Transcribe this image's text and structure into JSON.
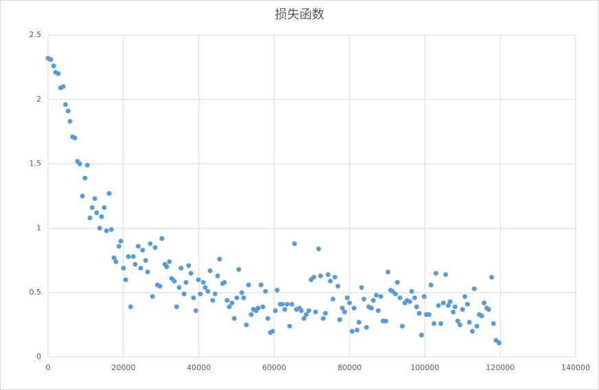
{
  "chart_data": {
    "type": "scatter",
    "title": "损失函数",
    "x": [
      0,
      700,
      1500,
      2000,
      2700,
      3300,
      4000,
      4600,
      5300,
      5800,
      6500,
      7100,
      7800,
      8400,
      9100,
      9800,
      10400,
      11100,
      11700,
      12400,
      12900,
      13700,
      14200,
      14900,
      15500,
      16200,
      16800,
      17500,
      18000,
      18800,
      19300,
      20000,
      20600,
      21300,
      21900,
      22600,
      23100,
      23900,
      24600,
      25100,
      25900,
      26400,
      27100,
      27700,
      28400,
      29000,
      29700,
      30200,
      31000,
      31500,
      32200,
      32800,
      33500,
      34100,
      34800,
      35300,
      36100,
      36600,
      37300,
      37900,
      38600,
      39200,
      39900,
      40400,
      41200,
      41700,
      42400,
      43000,
      43700,
      44300,
      45000,
      45500,
      46300,
      46800,
      47500,
      48100,
      48800,
      49400,
      50100,
      50600,
      51400,
      51900,
      52600,
      53200,
      53900,
      54500,
      55200,
      55700,
      56500,
      57000,
      57700,
      58300,
      59000,
      59600,
      60300,
      60800,
      61600,
      62100,
      62800,
      63400,
      64100,
      64700,
      65400,
      65900,
      66700,
      67200,
      67900,
      68500,
      69200,
      69800,
      70500,
      71000,
      71800,
      72300,
      73000,
      73600,
      74300,
      74900,
      75600,
      76100,
      76900,
      77400,
      78100,
      78700,
      79400,
      80000,
      80700,
      81200,
      82000,
      82500,
      83200,
      83800,
      84500,
      85100,
      85800,
      86300,
      87100,
      87600,
      88300,
      88900,
      89600,
      90200,
      90900,
      91400,
      92200,
      92700,
      93400,
      94000,
      94700,
      95300,
      96000,
      96500,
      97300,
      97800,
      98500,
      99100,
      99800,
      100400,
      101100,
      101600,
      102400,
      102900,
      103600,
      104200,
      104900,
      105500,
      106200,
      106700,
      107500,
      108000,
      108700,
      109300,
      110000,
      110600,
      111300,
      111800,
      112600,
      113100,
      113800,
      114400,
      115100,
      115700,
      116400,
      116900,
      117700,
      118200,
      118900,
      119700
    ],
    "values": [
      2.32,
      2.31,
      2.26,
      2.21,
      2.2,
      2.09,
      2.1,
      1.96,
      1.91,
      1.83,
      1.71,
      1.7,
      1.52,
      1.5,
      1.25,
      1.39,
      1.49,
      1.08,
      1.16,
      1.23,
      1.12,
      1.0,
      1.09,
      1.16,
      0.98,
      1.27,
      0.99,
      0.77,
      0.74,
      0.86,
      0.9,
      0.69,
      0.6,
      0.78,
      0.39,
      0.78,
      0.72,
      0.86,
      0.69,
      0.83,
      0.75,
      0.66,
      0.88,
      0.47,
      0.85,
      0.56,
      0.55,
      0.92,
      0.72,
      0.7,
      0.74,
      0.61,
      0.59,
      0.39,
      0.54,
      0.69,
      0.49,
      0.58,
      0.71,
      0.65,
      0.46,
      0.36,
      0.6,
      0.49,
      0.58,
      0.54,
      0.51,
      0.67,
      0.44,
      0.49,
      0.63,
      0.76,
      0.57,
      0.58,
      0.44,
      0.39,
      0.42,
      0.3,
      0.46,
      0.68,
      0.5,
      0.46,
      0.25,
      0.56,
      0.33,
      0.37,
      0.36,
      0.38,
      0.56,
      0.39,
      0.51,
      0.3,
      0.19,
      0.2,
      0.36,
      0.52,
      0.41,
      0.41,
      0.37,
      0.41,
      0.24,
      0.41,
      0.88,
      0.37,
      0.38,
      0.36,
      0.3,
      0.33,
      0.36,
      0.6,
      0.62,
      0.35,
      0.84,
      0.63,
      0.3,
      0.34,
      0.64,
      0.59,
      0.45,
      0.62,
      0.55,
      0.29,
      0.38,
      0.35,
      0.46,
      0.42,
      0.2,
      0.38,
      0.21,
      0.27,
      0.54,
      0.45,
      0.23,
      0.39,
      0.38,
      0.44,
      0.48,
      0.36,
      0.47,
      0.28,
      0.28,
      0.66,
      0.52,
      0.51,
      0.49,
      0.58,
      0.46,
      0.24,
      0.42,
      0.44,
      0.43,
      0.51,
      0.46,
      0.39,
      0.34,
      0.17,
      0.47,
      0.33,
      0.33,
      0.56,
      0.26,
      0.65,
      0.4,
      0.26,
      0.42,
      0.64,
      0.4,
      0.43,
      0.35,
      0.39,
      0.28,
      0.25,
      0.37,
      0.47,
      0.41,
      0.27,
      0.2,
      0.53,
      0.24,
      0.33,
      0.32,
      0.42,
      0.38,
      0.37,
      0.62,
      0.26,
      0.13,
      0.11
    ],
    "color": "#5b9bd5",
    "xlim": [
      0,
      140000
    ],
    "xticks": [
      0,
      20000,
      40000,
      60000,
      80000,
      100000,
      120000,
      140000
    ],
    "ylim": [
      0,
      2.5
    ],
    "yticks": [
      0,
      0.5,
      1,
      1.5,
      2,
      2.5
    ],
    "grid": true
  }
}
